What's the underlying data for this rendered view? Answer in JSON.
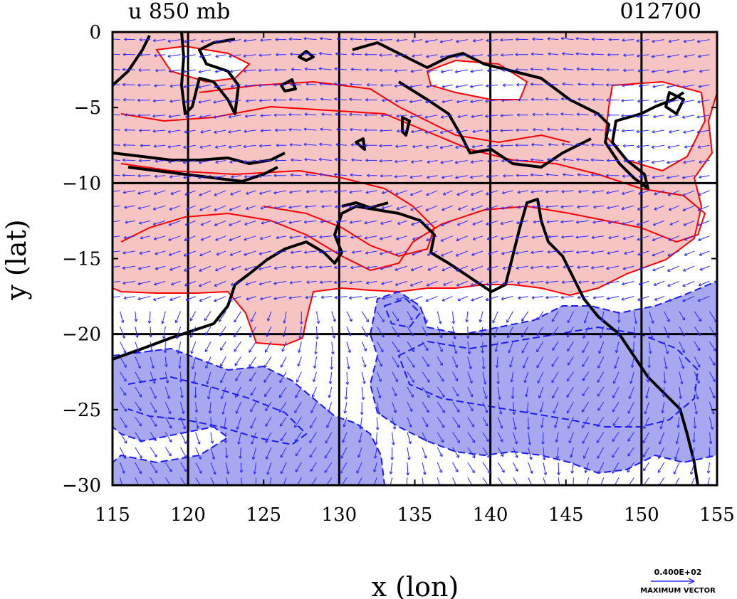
{
  "title": "u 850 mb",
  "date_code": "012700",
  "x_axis": {
    "label": "x (lon)",
    "ticks": [
      115,
      120,
      125,
      130,
      135,
      140,
      145,
      150,
      155
    ],
    "range": [
      115,
      155
    ]
  },
  "y_axis": {
    "label": "y (lat)",
    "ticks": [
      0,
      -5,
      -10,
      -15,
      -20,
      -25,
      -30
    ],
    "range": [
      0,
      -30
    ]
  },
  "grid_lines": {
    "lon": [
      120,
      130,
      140,
      150
    ],
    "lat": [
      -10,
      -20
    ]
  },
  "vector_legend": {
    "value": "0.400E+02",
    "label": "MAXIMUM VECTOR",
    "color": "#2a2aff"
  },
  "colors": {
    "positive_fill": "#f7c4c4",
    "positive_contour": "#ff0000",
    "negative_fill": "#a8a8f0",
    "negative_contour": "#1a1aff",
    "coastline": "#000000",
    "vectors": "#2a2aff"
  },
  "vector_field": {
    "lon_step": 1.0,
    "lat_step": 1.0
  }
}
